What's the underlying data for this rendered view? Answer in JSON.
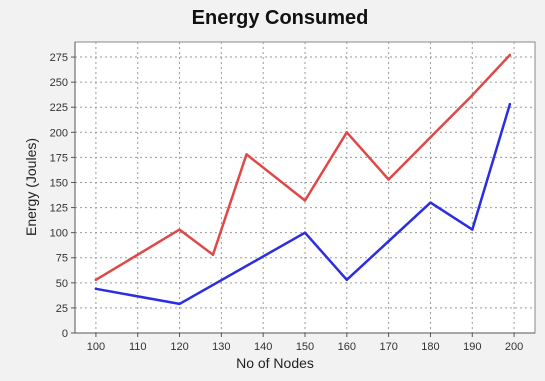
{
  "chart_data": {
    "type": "line",
    "title": "Energy Consumed",
    "xlabel": "No of Nodes",
    "ylabel": "Energy (Joules)",
    "xlim": [
      95,
      205
    ],
    "ylim": [
      0,
      290
    ],
    "xticks": [
      100,
      110,
      120,
      130,
      140,
      150,
      160,
      170,
      180,
      190,
      200
    ],
    "yticks": [
      0,
      25,
      50,
      75,
      100,
      125,
      150,
      175,
      200,
      225,
      250,
      275
    ],
    "grid": true,
    "legend": "none",
    "series": [
      {
        "color": "#e04848",
        "x": [
          100,
          120,
          128,
          136,
          150,
          160,
          170,
          180,
          190,
          199
        ],
        "y": [
          53,
          103,
          78,
          178,
          132,
          200,
          153,
          195,
          237,
          277
        ]
      },
      {
        "color": "#2a2ee0",
        "x": [
          100,
          120,
          150,
          160,
          180,
          190,
          199
        ],
        "y": [
          44,
          29,
          100,
          53,
          130,
          103,
          228
        ]
      }
    ]
  }
}
